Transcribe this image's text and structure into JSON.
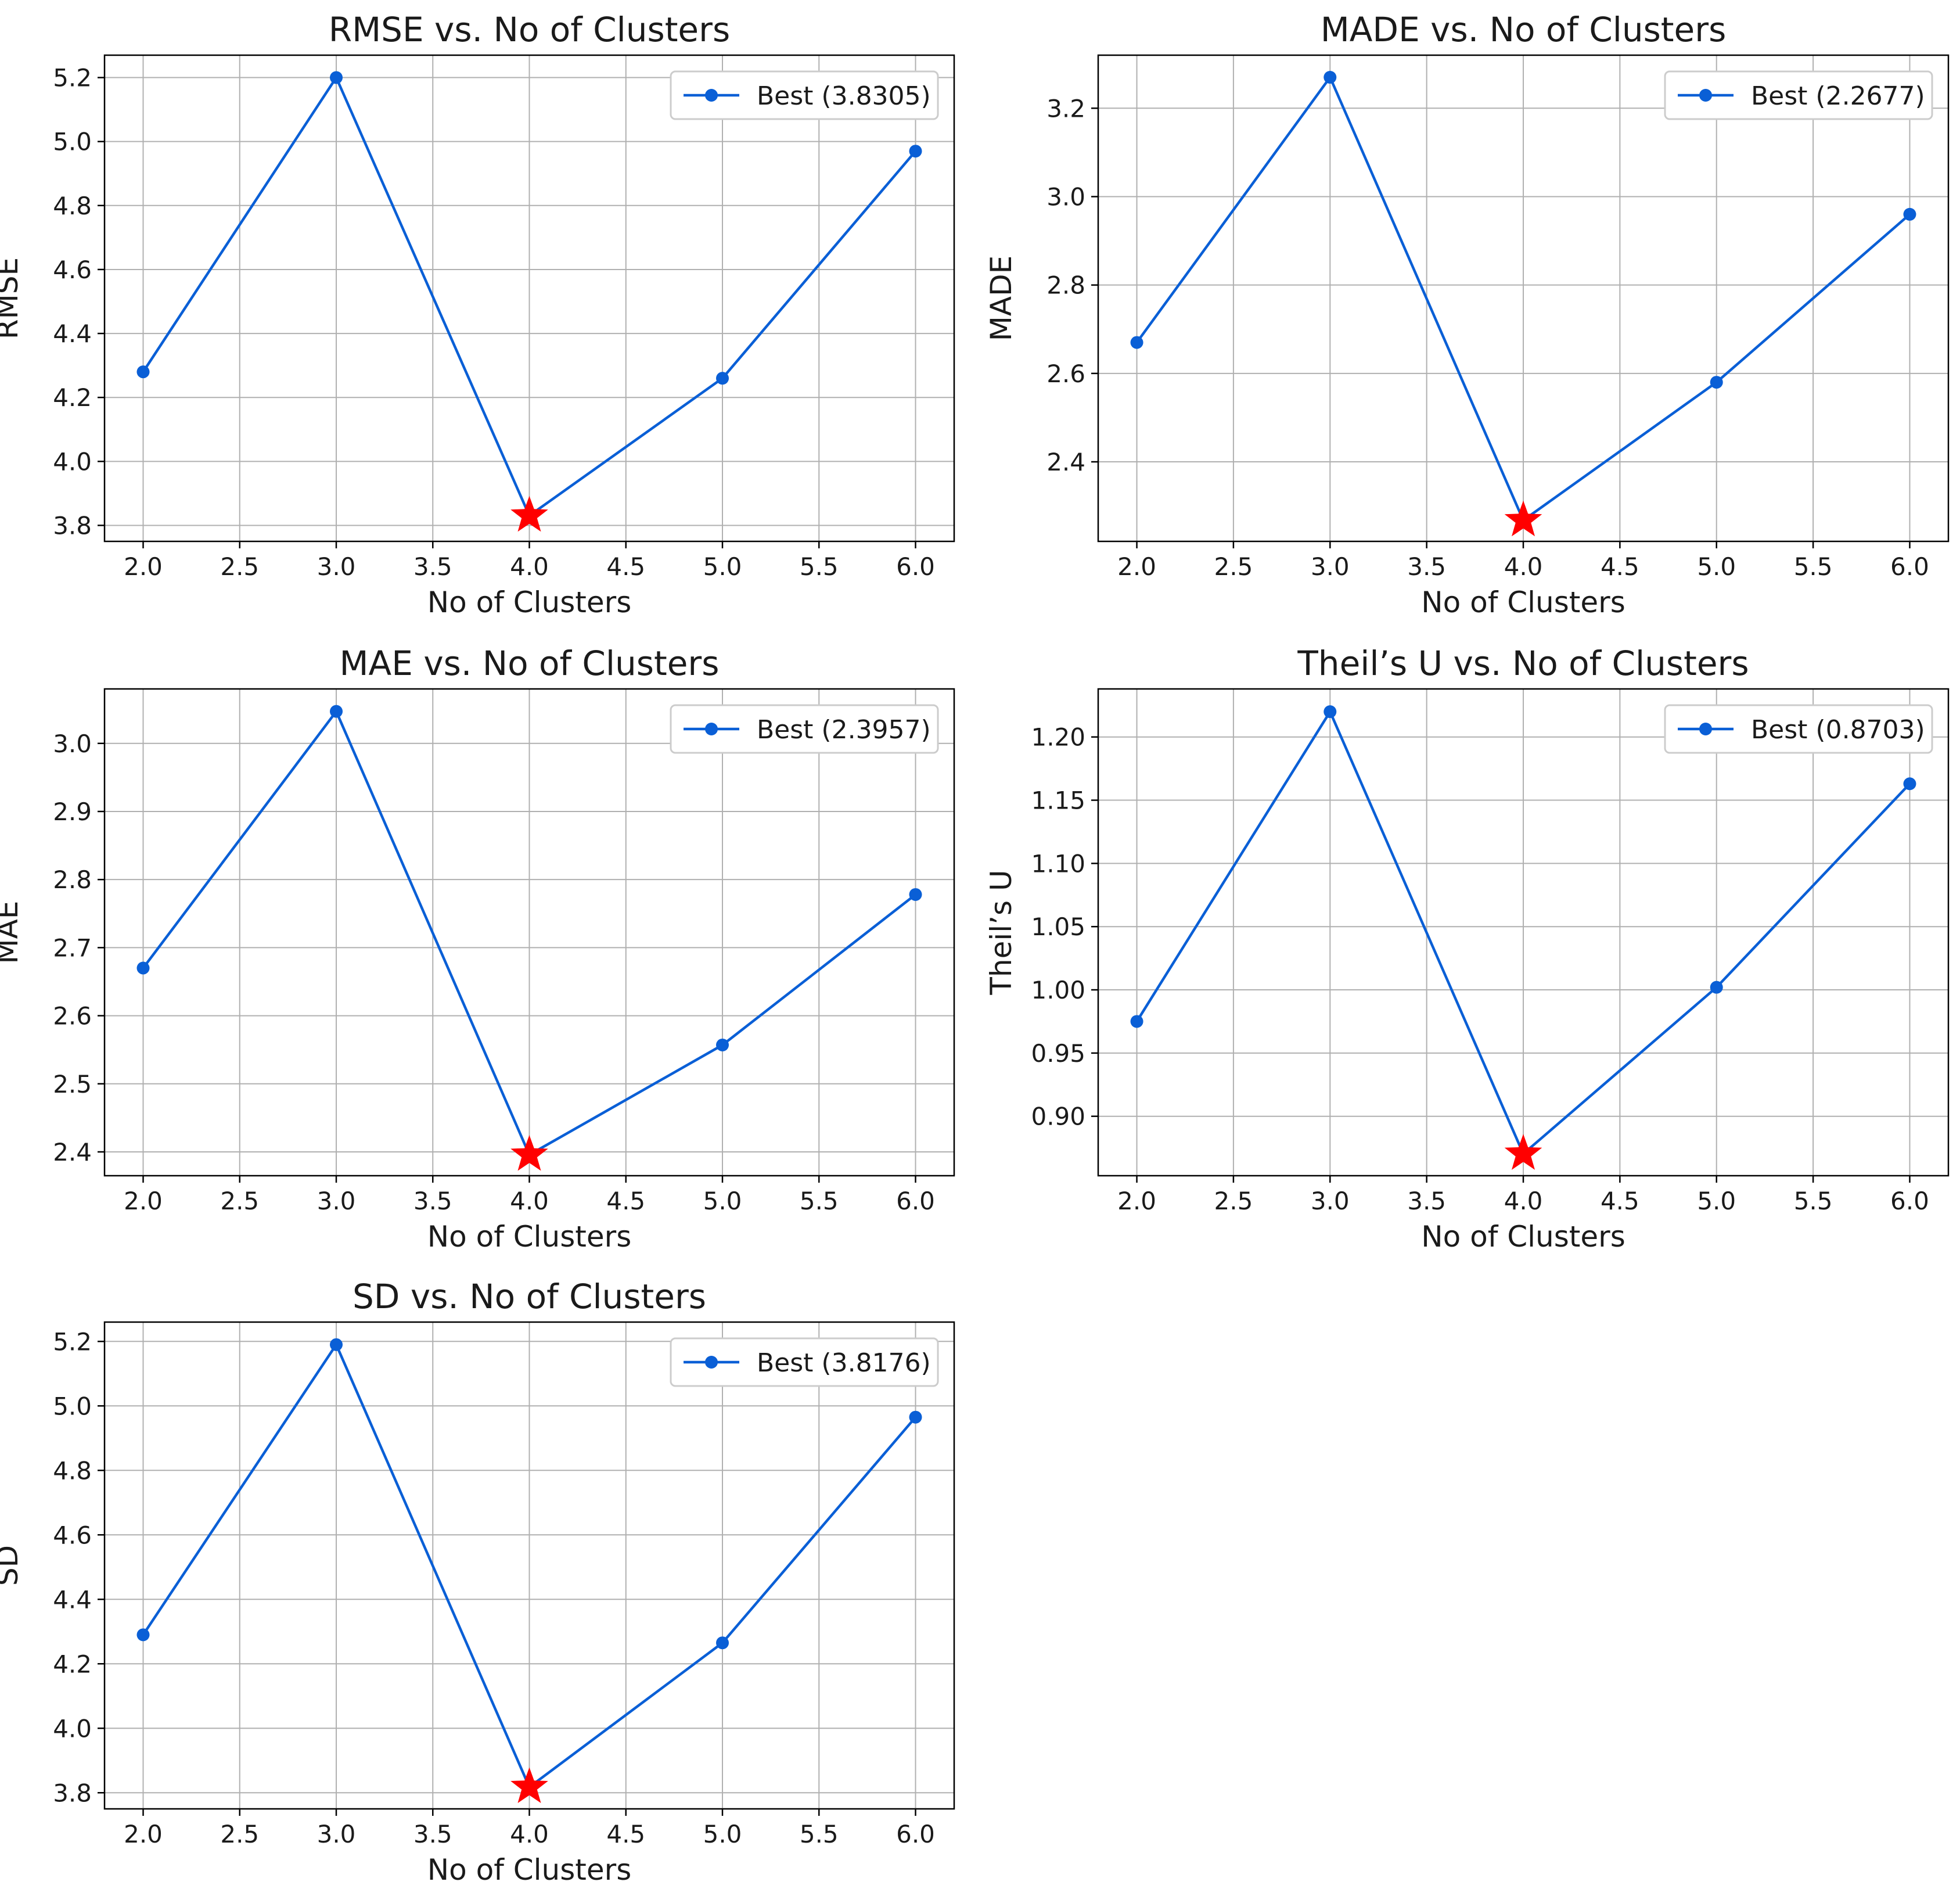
{
  "colors": {
    "line": "#0a5fd6",
    "best_marker": "#ff0000",
    "grid": "#b0b0b0",
    "axis": "#000000",
    "legend_border": "#cccccc"
  },
  "chart_data": [
    {
      "type": "line",
      "title": "RMSE vs. No of Clusters",
      "xlabel": "No of Clusters",
      "ylabel": "RMSE",
      "x": [
        2,
        3,
        4,
        5,
        6
      ],
      "series": [
        {
          "name": "Best (3.8305)",
          "values": [
            4.28,
            5.2,
            3.8305,
            4.26,
            4.97
          ]
        }
      ],
      "best": {
        "x": 4,
        "y": 3.8305
      },
      "xlim": [
        1.8,
        6.2
      ],
      "ylim": [
        3.75,
        5.27
      ],
      "xticks": [
        2.0,
        2.5,
        3.0,
        3.5,
        4.0,
        4.5,
        5.0,
        5.5,
        6.0
      ],
      "xtick_labels": [
        "2.0",
        "2.5",
        "3.0",
        "3.5",
        "4.0",
        "4.5",
        "5.0",
        "5.5",
        "6.0"
      ],
      "yticks": [
        3.8,
        4.0,
        4.2,
        4.4,
        4.6,
        4.8,
        5.0,
        5.2
      ],
      "ytick_labels": [
        "3.8",
        "4.0",
        "4.2",
        "4.4",
        "4.6",
        "4.8",
        "5.0",
        "5.2"
      ],
      "grid": true,
      "legend": "top-right"
    },
    {
      "type": "line",
      "title": "MADE vs. No of Clusters",
      "xlabel": "No of Clusters",
      "ylabel": "MADE",
      "x": [
        2,
        3,
        4,
        5,
        6
      ],
      "series": [
        {
          "name": "Best (2.2677)",
          "values": [
            2.67,
            3.27,
            2.2677,
            2.58,
            2.96
          ]
        }
      ],
      "best": {
        "x": 4,
        "y": 2.2677
      },
      "xlim": [
        1.8,
        6.2
      ],
      "ylim": [
        2.22,
        3.32
      ],
      "xticks": [
        2.0,
        2.5,
        3.0,
        3.5,
        4.0,
        4.5,
        5.0,
        5.5,
        6.0
      ],
      "xtick_labels": [
        "2.0",
        "2.5",
        "3.0",
        "3.5",
        "4.0",
        "4.5",
        "5.0",
        "5.5",
        "6.0"
      ],
      "yticks": [
        2.4,
        2.6,
        2.8,
        3.0,
        3.2
      ],
      "ytick_labels": [
        "2.4",
        "2.6",
        "2.8",
        "3.0",
        "3.2"
      ],
      "grid": true,
      "legend": "top-right"
    },
    {
      "type": "line",
      "title": "MAE vs. No of Clusters",
      "xlabel": "No of Clusters",
      "ylabel": "MAE",
      "x": [
        2,
        3,
        4,
        5,
        6
      ],
      "series": [
        {
          "name": "Best (2.3957)",
          "values": [
            2.67,
            3.047,
            2.3957,
            2.557,
            2.778
          ]
        }
      ],
      "best": {
        "x": 4,
        "y": 2.3957
      },
      "xlim": [
        1.8,
        6.2
      ],
      "ylim": [
        2.365,
        3.08
      ],
      "xticks": [
        2.0,
        2.5,
        3.0,
        3.5,
        4.0,
        4.5,
        5.0,
        5.5,
        6.0
      ],
      "xtick_labels": [
        "2.0",
        "2.5",
        "3.0",
        "3.5",
        "4.0",
        "4.5",
        "5.0",
        "5.5",
        "6.0"
      ],
      "yticks": [
        2.4,
        2.5,
        2.6,
        2.7,
        2.8,
        2.9,
        3.0
      ],
      "ytick_labels": [
        "2.4",
        "2.5",
        "2.6",
        "2.7",
        "2.8",
        "2.9",
        "3.0"
      ],
      "grid": true,
      "legend": "top-right"
    },
    {
      "type": "line",
      "title": "Theil’s U vs. No of Clusters",
      "xlabel": "No of Clusters",
      "ylabel": "Theil’s U",
      "x": [
        2,
        3,
        4,
        5,
        6
      ],
      "series": [
        {
          "name": "Best (0.8703)",
          "values": [
            0.975,
            1.22,
            0.8703,
            1.002,
            1.163
          ]
        }
      ],
      "best": {
        "x": 4,
        "y": 0.8703
      },
      "xlim": [
        1.8,
        6.2
      ],
      "ylim": [
        0.853,
        1.238
      ],
      "xticks": [
        2.0,
        2.5,
        3.0,
        3.5,
        4.0,
        4.5,
        5.0,
        5.5,
        6.0
      ],
      "xtick_labels": [
        "2.0",
        "2.5",
        "3.0",
        "3.5",
        "4.0",
        "4.5",
        "5.0",
        "5.5",
        "6.0"
      ],
      "yticks": [
        0.9,
        0.95,
        1.0,
        1.05,
        1.1,
        1.15,
        1.2
      ],
      "ytick_labels": [
        "0.90",
        "0.95",
        "1.00",
        "1.05",
        "1.10",
        "1.15",
        "1.20"
      ],
      "grid": true,
      "legend": "top-right"
    },
    {
      "type": "line",
      "title": "SD vs. No of Clusters",
      "xlabel": "No of Clusters",
      "ylabel": "SD",
      "x": [
        2,
        3,
        4,
        5,
        6
      ],
      "series": [
        {
          "name": "Best (3.8176)",
          "values": [
            4.29,
            5.19,
            3.8176,
            4.265,
            4.965
          ]
        }
      ],
      "best": {
        "x": 4,
        "y": 3.8176
      },
      "xlim": [
        1.8,
        6.2
      ],
      "ylim": [
        3.75,
        5.26
      ],
      "xticks": [
        2.0,
        2.5,
        3.0,
        3.5,
        4.0,
        4.5,
        5.0,
        5.5,
        6.0
      ],
      "xtick_labels": [
        "2.0",
        "2.5",
        "3.0",
        "3.5",
        "4.0",
        "4.5",
        "5.0",
        "5.5",
        "6.0"
      ],
      "yticks": [
        3.8,
        4.0,
        4.2,
        4.4,
        4.6,
        4.8,
        5.0,
        5.2
      ],
      "ytick_labels": [
        "3.8",
        "4.0",
        "4.2",
        "4.4",
        "4.6",
        "4.8",
        "5.0",
        "5.2"
      ],
      "grid": true,
      "legend": "top-right"
    }
  ]
}
